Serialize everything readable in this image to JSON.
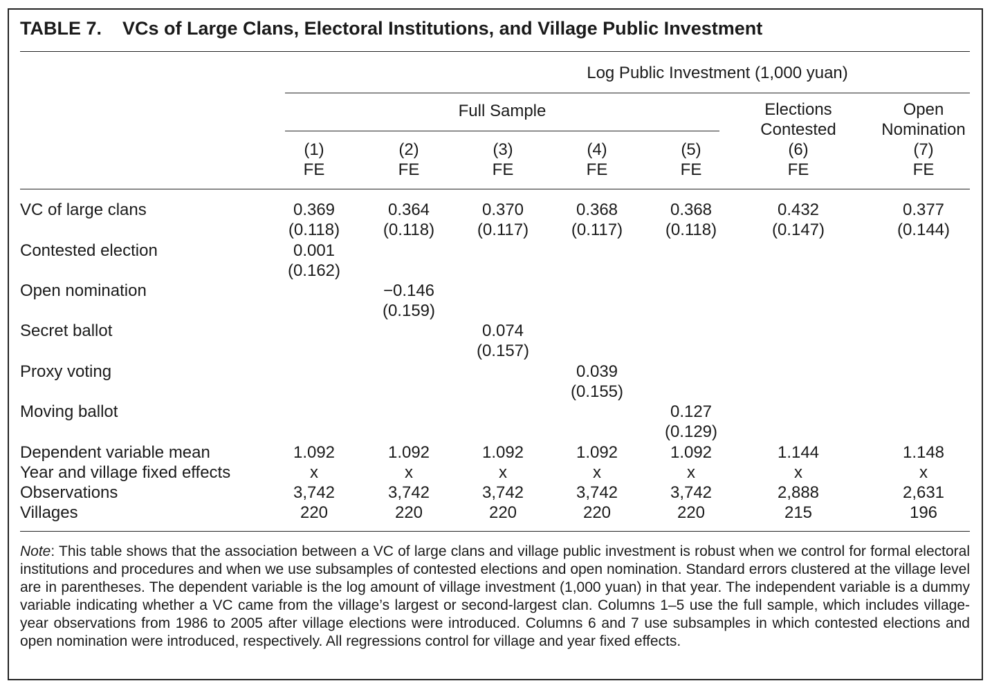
{
  "title": {
    "number": "TABLE 7.",
    "text": "VCs of Large Clans, Electoral Institutions, and Village Public Investment"
  },
  "header": {
    "dependent_label": "Log Public Investment (1,000 yuan)",
    "full_sample_label": "Full Sample",
    "col6_group": [
      "Elections",
      "Contested"
    ],
    "col7_group": [
      "Open",
      "Nomination"
    ],
    "columns": [
      {
        "num": "(1)",
        "method": "FE"
      },
      {
        "num": "(2)",
        "method": "FE"
      },
      {
        "num": "(3)",
        "method": "FE"
      },
      {
        "num": "(4)",
        "method": "FE"
      },
      {
        "num": "(5)",
        "method": "FE"
      },
      {
        "num": "(6)",
        "method": "FE"
      },
      {
        "num": "(7)",
        "method": "FE"
      }
    ]
  },
  "rows": {
    "vc": {
      "label": "VC of large clans",
      "coef": [
        "0.369",
        "0.364",
        "0.370",
        "0.368",
        "0.368",
        "0.432",
        "0.377"
      ],
      "se": [
        "(0.118)",
        "(0.118)",
        "(0.117)",
        "(0.117)",
        "(0.118)",
        "(0.147)",
        "(0.144)"
      ]
    },
    "contested": {
      "label": "Contested election",
      "coef": "0.001",
      "se": "(0.162)"
    },
    "open_nom": {
      "label": "Open nomination",
      "coef": "−0.146",
      "se": "(0.159)"
    },
    "secret": {
      "label": "Secret ballot",
      "coef": "0.074",
      "se": "(0.157)"
    },
    "proxy": {
      "label": "Proxy voting",
      "coef": "0.039",
      "se": "(0.155)"
    },
    "moving": {
      "label": "Moving ballot",
      "coef": "0.127",
      "se": "(0.129)"
    },
    "dep_mean": {
      "label": "Dependent variable mean",
      "values": [
        "1.092",
        "1.092",
        "1.092",
        "1.092",
        "1.092",
        "1.144",
        "1.148"
      ]
    },
    "fixed": {
      "label": "Year and village fixed effects",
      "values": [
        "x",
        "x",
        "x",
        "x",
        "x",
        "x",
        "x"
      ]
    },
    "obs": {
      "label": "Observations",
      "values": [
        "3,742",
        "3,742",
        "3,742",
        "3,742",
        "3,742",
        "2,888",
        "2,631"
      ]
    },
    "villages": {
      "label": "Villages",
      "values": [
        "220",
        "220",
        "220",
        "220",
        "220",
        "215",
        "196"
      ]
    }
  },
  "note": {
    "lead": "Note",
    "text": ": This table shows that the association between a VC of large clans and village public investment is robust when we control for formal electoral institutions and procedures and when we use subsamples of contested elections and open nomination. Standard errors clustered at the village level are in parentheses. The dependent variable is the log amount of village investment (1,000 yuan) in that year. The independent variable is a dummy variable indicating whether a VC came from the village’s largest or second-largest clan. Columns 1–5 use the full sample, which includes village-year observations from 1986 to 2005 after village elections were introduced. Columns 6 and 7 use subsamples in which contested elections and open nomination were introduced, respectively. All regressions control for village and year fixed effects."
  }
}
